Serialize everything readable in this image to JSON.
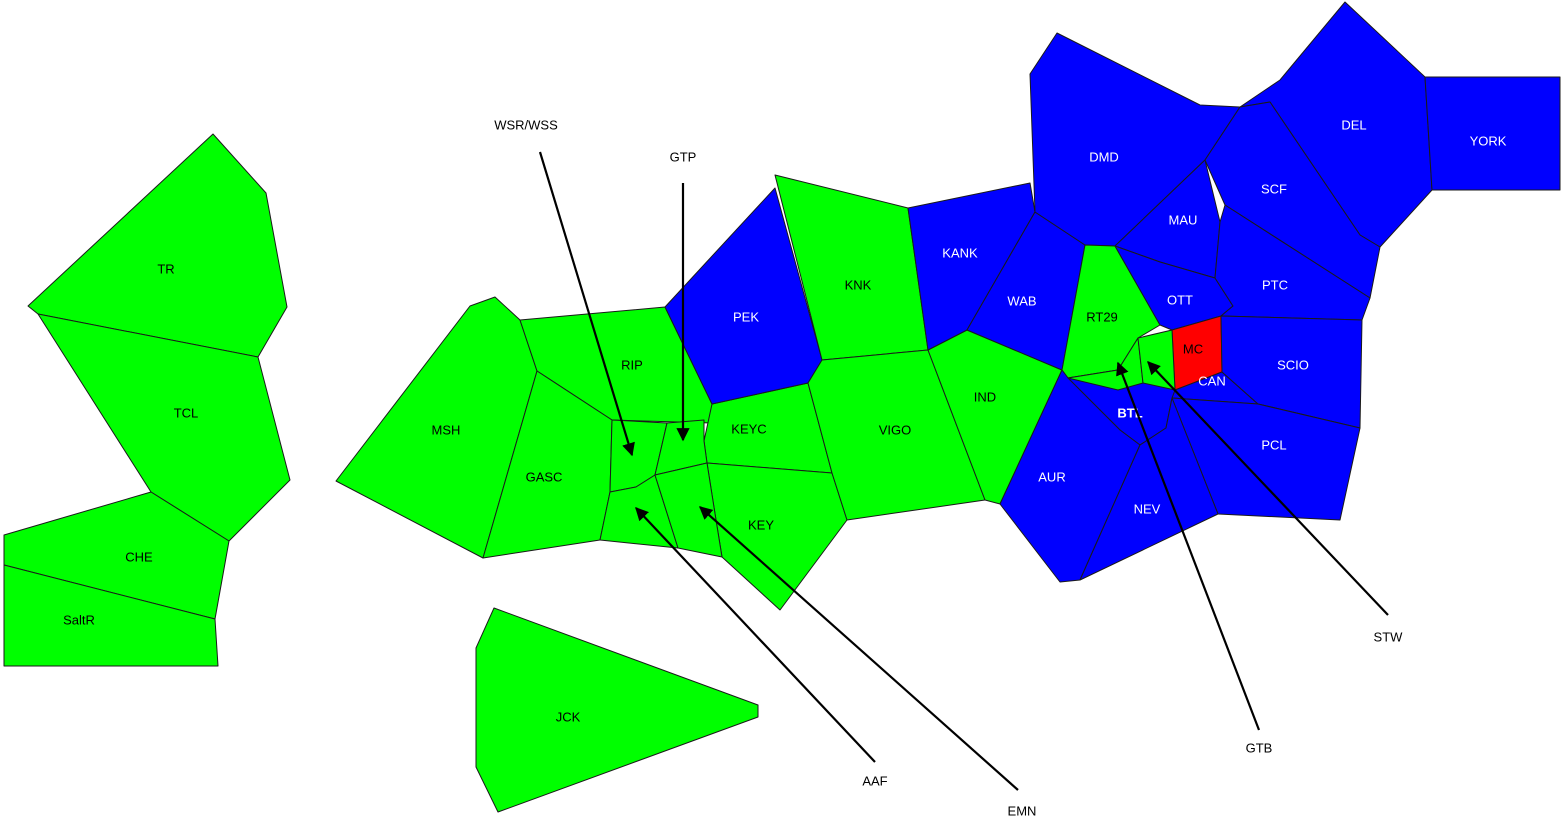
{
  "colors": {
    "green": "#00ff00",
    "blue": "#0000ff",
    "red": "#ff0000",
    "border": "#1a1a1a",
    "callout": "#000000"
  },
  "regions": [
    {
      "id": "TR",
      "label": "TR",
      "color": "green"
    },
    {
      "id": "TCL",
      "label": "TCL",
      "color": "green"
    },
    {
      "id": "CHE",
      "label": "CHE",
      "color": "green"
    },
    {
      "id": "SaltR",
      "label": "SaltR",
      "color": "green"
    },
    {
      "id": "MSH",
      "label": "MSH",
      "color": "green"
    },
    {
      "id": "RIP",
      "label": "RIP",
      "color": "green"
    },
    {
      "id": "GASC",
      "label": "GASC",
      "color": "green"
    },
    {
      "id": "JCK",
      "label": "JCK",
      "color": "green"
    },
    {
      "id": "KEYC",
      "label": "KEYC",
      "color": "green"
    },
    {
      "id": "KEY",
      "label": "KEY",
      "color": "green"
    },
    {
      "id": "PEK",
      "label": "PEK",
      "color": "blue"
    },
    {
      "id": "KNK",
      "label": "KNK",
      "color": "green"
    },
    {
      "id": "VIGO",
      "label": "VIGO",
      "color": "green"
    },
    {
      "id": "IND",
      "label": "IND",
      "color": "green"
    },
    {
      "id": "KANK",
      "label": "KANK",
      "color": "blue"
    },
    {
      "id": "WAB",
      "label": "WAB",
      "color": "blue"
    },
    {
      "id": "DMD",
      "label": "DMD",
      "color": "blue"
    },
    {
      "id": "RT29",
      "label": "RT29",
      "color": "green"
    },
    {
      "id": "MAU",
      "label": "MAU",
      "color": "blue"
    },
    {
      "id": "OTT",
      "label": "OTT",
      "color": "blue"
    },
    {
      "id": "MC",
      "label": "MC",
      "color": "red"
    },
    {
      "id": "CAN",
      "label": "CAN",
      "color": "blue"
    },
    {
      "id": "DEL",
      "label": "DEL",
      "color": "blue"
    },
    {
      "id": "YORK",
      "label": "YORK",
      "color": "blue"
    },
    {
      "id": "SCF",
      "label": "SCF",
      "color": "blue"
    },
    {
      "id": "PTC",
      "label": "PTC",
      "color": "blue"
    },
    {
      "id": "SCIO",
      "label": "SCIO",
      "color": "blue"
    },
    {
      "id": "PCL",
      "label": "PCL",
      "color": "blue"
    },
    {
      "id": "BTL",
      "label": "BTL",
      "color": "blue"
    },
    {
      "id": "AUR",
      "label": "AUR",
      "color": "blue"
    },
    {
      "id": "NEV",
      "label": "NEV",
      "color": "blue"
    },
    {
      "id": "WSR",
      "label": "",
      "color": "green"
    },
    {
      "id": "AAF",
      "label": "",
      "color": "green"
    },
    {
      "id": "GTP",
      "label": "",
      "color": "green"
    },
    {
      "id": "EMN",
      "label": "",
      "color": "green"
    },
    {
      "id": "GTB",
      "label": "",
      "color": "green"
    },
    {
      "id": "STW",
      "label": "",
      "color": "green"
    }
  ],
  "callouts": [
    {
      "id": "WSR",
      "label": "WSR/WSS"
    },
    {
      "id": "GTP",
      "label": "GTP"
    },
    {
      "id": "AAF",
      "label": "AAF"
    },
    {
      "id": "EMN",
      "label": "EMN"
    },
    {
      "id": "GTB",
      "label": "GTB"
    },
    {
      "id": "STW",
      "label": "STW"
    }
  ]
}
